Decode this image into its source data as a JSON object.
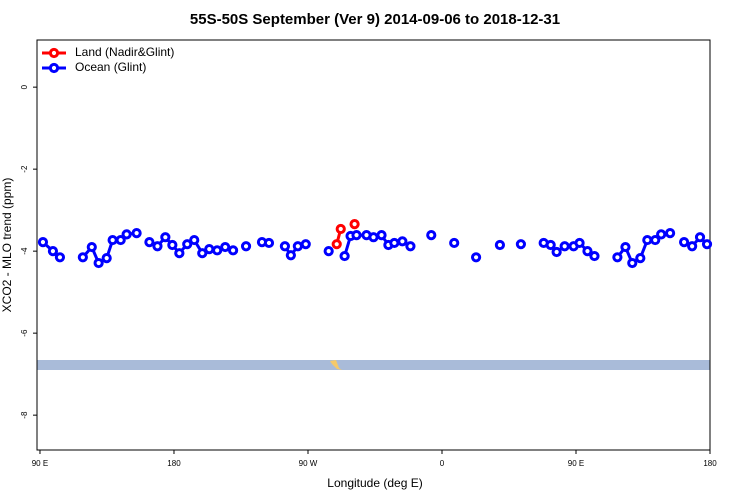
{
  "chart_data": {
    "type": "line",
    "title": "55S-50S September (Ver 9)   2014-09-06 to 2018-12-31",
    "x_label": "Longitude (deg E)",
    "y_label": "XCO2 - MLO trend (ppm)",
    "xlim": [
      88,
      540
    ],
    "ylim": [
      -8.85,
      1.15
    ],
    "xticks": [
      {
        "value": 90,
        "label": "90 E"
      },
      {
        "value": 180,
        "label": "180"
      },
      {
        "value": 270,
        "label": "90 W"
      },
      {
        "value": 360,
        "label": "0"
      },
      {
        "value": 450,
        "label": "90 E"
      },
      {
        "value": 540,
        "label": "180"
      }
    ],
    "yticks": [
      0,
      -2,
      -4,
      -6,
      -8
    ],
    "legend_position": "upper-left",
    "series": [
      {
        "name": "Land (Nadir&Glint)",
        "color": "#ff0000",
        "x": [
          289.3,
          292.0,
          null,
          301.3
        ],
        "values": [
          -3.83,
          -3.46,
          null,
          -3.34
        ]
      },
      {
        "name": "Ocean (Glint)",
        "color": "#0000ff",
        "x": [
          92,
          98.7,
          103.4,
          null,
          118.8,
          124.8,
          129.4,
          134.8,
          138.8,
          144.2,
          148.2,
          154.9,
          null,
          163.5,
          168.9,
          174.2,
          178.9,
          183.6,
          188.9,
          193.6,
          199,
          203.7,
          209,
          214.4,
          219.7,
          null,
          228.4,
          null,
          239.1,
          243.8,
          null,
          254.5,
          258.5,
          263.2,
          268.5,
          null,
          283.9,
          null,
          294.6,
          298.6,
          302.6,
          309.3,
          314,
          319.4,
          324,
          328,
          333.4,
          338.8,
          null,
          352.8,
          null,
          368.2,
          null,
          382.9,
          null,
          398.9,
          null,
          413,
          null,
          428.3,
          433,
          437,
          442.4,
          448.4,
          452.4,
          457.7,
          462.4,
          null,
          477.8,
          483.2,
          487.8,
          493.2,
          497.9,
          503.2,
          507.2,
          513.2,
          null,
          522.6,
          528,
          533.3,
          538
        ],
        "values": [
          -3.78,
          -4.0,
          -4.15,
          null,
          -4.15,
          -3.9,
          -4.29,
          -4.17,
          -3.73,
          -3.73,
          -3.59,
          -3.56,
          null,
          -3.78,
          -3.88,
          -3.66,
          -3.85,
          -4.05,
          -3.83,
          -3.73,
          -4.05,
          -3.95,
          -3.98,
          -3.9,
          -3.98,
          null,
          -3.88,
          null,
          -3.78,
          -3.8,
          null,
          -3.88,
          -4.1,
          -3.88,
          -3.83,
          null,
          -4.0,
          null,
          -4.12,
          -3.63,
          -3.61,
          -3.61,
          -3.66,
          -3.61,
          -3.85,
          -3.8,
          -3.76,
          -3.88,
          null,
          -3.61,
          null,
          -3.8,
          null,
          -4.15,
          null,
          -3.85,
          null,
          -3.83,
          null,
          -3.8,
          -3.85,
          -4.02,
          -3.88,
          -3.88,
          -3.8,
          -4.0,
          -4.12,
          null,
          -4.15,
          -3.9,
          -4.29,
          -4.17,
          -3.73,
          -3.73,
          -3.59,
          -3.56,
          null,
          -3.78,
          -3.88,
          -3.66,
          -3.83
        ]
      }
    ]
  }
}
